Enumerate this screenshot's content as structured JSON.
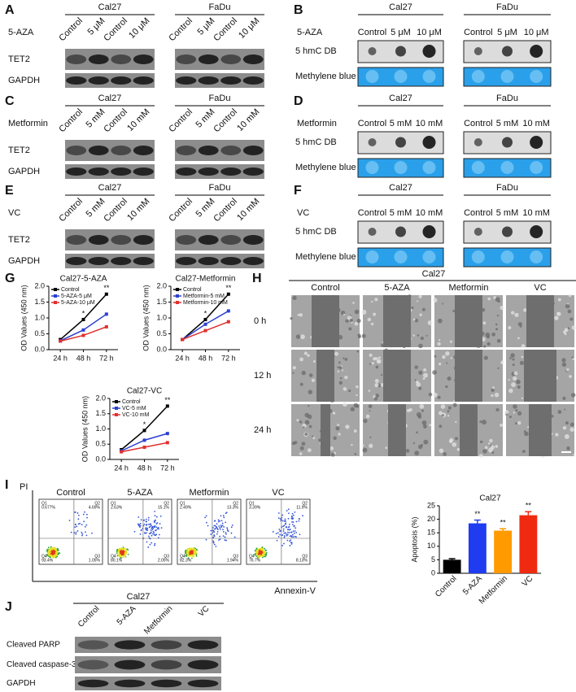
{
  "panels": [
    {
      "label": "A",
      "treatment": "5-AZA",
      "groups": [
        {
          "name": "Cal27",
          "lanes": [
            "Control",
            "5 μM",
            "Control",
            "10 μM"
          ]
        },
        {
          "name": "FaDu",
          "lanes": [
            "Control",
            "5 μM",
            "Control",
            "10 μM"
          ]
        }
      ],
      "rows": [
        "TET2",
        "GAPDH"
      ]
    },
    {
      "label": "B",
      "treatment": "5-AZA",
      "groups": [
        {
          "name": "Cal27",
          "lanes": [
            "Control",
            "5 μM",
            "10 μM"
          ]
        },
        {
          "name": "FaDu",
          "lanes": [
            "Control",
            "5 μM",
            "10 μM"
          ]
        }
      ],
      "rows": [
        "5 hmC DB",
        "Methylene blue"
      ]
    },
    {
      "label": "C",
      "treatment": "Metformin",
      "groups": [
        {
          "name": "Cal27",
          "lanes": [
            "Control",
            "5 mM",
            "Control",
            "10 mM"
          ]
        },
        {
          "name": "FaDu",
          "lanes": [
            "Control",
            "5 mM",
            "Control",
            "10 mM"
          ]
        }
      ],
      "rows": [
        "TET2",
        "GAPDH"
      ]
    },
    {
      "label": "D",
      "treatment": "Metformin",
      "groups": [
        {
          "name": "Cal27",
          "lanes": [
            "Control",
            "5 mM",
            "10 mM"
          ]
        },
        {
          "name": "FaDu",
          "lanes": [
            "Control",
            "5 mM",
            "10 mM"
          ]
        }
      ],
      "rows": [
        "5 hmC DB",
        "Methylene blue"
      ]
    },
    {
      "label": "E",
      "treatment": "VC",
      "groups": [
        {
          "name": "Cal27",
          "lanes": [
            "Control",
            "5 mM",
            "Control",
            "10 mM"
          ]
        },
        {
          "name": "FaDu",
          "lanes": [
            "Control",
            "5 mM",
            "Control",
            "10 mM"
          ]
        }
      ],
      "rows": [
        "TET2",
        "GAPDH"
      ]
    },
    {
      "label": "F",
      "treatment": "VC",
      "groups": [
        {
          "name": "Cal27",
          "lanes": [
            "Control",
            "5 mM",
            "10 mM"
          ]
        },
        {
          "name": "FaDu",
          "lanes": [
            "Control",
            "5 mM",
            "10 mM"
          ]
        }
      ],
      "rows": [
        "5 hmC DB",
        "Methylene blue"
      ]
    }
  ],
  "proliferation": {
    "label": "G"
  },
  "wound_healing": {
    "label": "H",
    "title": "Cal27",
    "columns": [
      "Control",
      "5-AZA",
      "Metformin",
      "VC"
    ],
    "rows": [
      "0 h",
      "12 h",
      "24 h"
    ]
  },
  "apoptosis": {
    "label": "I",
    "y_label": "PI",
    "x_label": "Annexin-V",
    "plots": [
      {
        "title": "Control",
        "quadrants": [
          {
            "name": "Q1",
            "value": "0.677%"
          },
          {
            "name": "Q2",
            "value": "4.69%"
          },
          {
            "name": "Q4",
            "value": "93.4%"
          },
          {
            "name": "Q3",
            "value": "1.05%"
          }
        ]
      },
      {
        "title": "5-AZA",
        "quadrants": [
          {
            "name": "Q1",
            "value": "2.63%"
          },
          {
            "name": "Q2",
            "value": "15.1%"
          },
          {
            "name": "Q4",
            "value": "80.1%"
          },
          {
            "name": "Q3",
            "value": "2.05%"
          }
        ]
      },
      {
        "title": "Metformin",
        "quadrants": [
          {
            "name": "Q1",
            "value": "2.49%"
          },
          {
            "name": "Q2",
            "value": "13.3%"
          },
          {
            "name": "Q4",
            "value": "82.3%"
          },
          {
            "name": "Q3",
            "value": "1.94%"
          }
        ]
      },
      {
        "title": "VC",
        "quadrants": [
          {
            "name": "Q1",
            "value": "3.39%"
          },
          {
            "name": "Q2",
            "value": "11.9%"
          },
          {
            "name": "Q4",
            "value": "76.7%"
          },
          {
            "name": "Q3",
            "value": "8.13%"
          }
        ]
      }
    ]
  },
  "western": {
    "label": "J",
    "title": "Cal27",
    "lanes": [
      "Control",
      "5-AZA",
      "Metformin",
      "VC"
    ],
    "rows": [
      "Cleaved PARP",
      "Cleaved caspase-3",
      "GAPDH"
    ]
  },
  "chart_data": [
    {
      "type": "line",
      "title": "Cal27-5-AZA",
      "y_label": "OD Values (450 nm)",
      "categories": [
        "24 h",
        "48 h",
        "72 h"
      ],
      "series": [
        {
          "name": "Control",
          "color": "#000000",
          "values": [
            0.32,
            0.95,
            1.75
          ]
        },
        {
          "name": "5-AZA-5 μM",
          "color": "#2c3fd0",
          "values": [
            0.28,
            0.62,
            1.12
          ]
        },
        {
          "name": "5-AZA-10 μM",
          "color": "#e03030",
          "values": [
            0.27,
            0.45,
            0.72
          ]
        }
      ],
      "annotations": [
        null,
        "*",
        "**"
      ],
      "ylim": [
        0,
        2
      ],
      "yticks": [
        {
          "value": 0,
          "label": "0.0"
        },
        0.5,
        {
          "value": 1,
          "label": "1.0"
        },
        1.5,
        {
          "value": 2,
          "label": "2.0"
        }
      ]
    },
    {
      "type": "line",
      "title": "Cal27-Metformin",
      "y_label": "OD Values (450 nm)",
      "categories": [
        "24 h",
        "48 h",
        "72 h"
      ],
      "series": [
        {
          "name": "Control",
          "color": "#000000",
          "values": [
            0.32,
            0.95,
            1.75
          ]
        },
        {
          "name": "Metformin-5 mM",
          "color": "#2c3fd0",
          "values": [
            0.32,
            0.8,
            1.22
          ]
        },
        {
          "name": "Metformin-10 mM",
          "color": "#e03030",
          "values": [
            0.32,
            0.6,
            0.88
          ]
        }
      ],
      "annotations": [
        null,
        "*",
        "**"
      ],
      "ylim": [
        0,
        2
      ],
      "yticks": [
        {
          "value": 0,
          "label": "0.0"
        },
        0.5,
        {
          "value": 1,
          "label": "1.0"
        },
        1.5,
        {
          "value": 2,
          "label": "2.0"
        }
      ]
    },
    {
      "type": "line",
      "title": "Cal27-VC",
      "y_label": "OD Values (450 nm)",
      "categories": [
        "24 h",
        "48 h",
        "72 h"
      ],
      "series": [
        {
          "name": "Control",
          "color": "#000000",
          "values": [
            0.32,
            0.95,
            1.75
          ]
        },
        {
          "name": "VC-5 mM",
          "color": "#2c3fd0",
          "values": [
            0.28,
            0.63,
            0.85
          ]
        },
        {
          "name": "VC-10 mM",
          "color": "#e03030",
          "values": [
            0.25,
            0.4,
            0.55
          ]
        }
      ],
      "annotations": [
        null,
        "*",
        "**"
      ],
      "ylim": [
        0,
        2
      ],
      "yticks": [
        {
          "value": 0,
          "label": "0.0"
        },
        0.5,
        {
          "value": 1,
          "label": "1.0"
        },
        1.5,
        {
          "value": 2,
          "label": "2.0"
        }
      ]
    },
    {
      "type": "bar",
      "title": "Cal27",
      "y_label": "Apoptosis (%)",
      "categories": [
        "Control",
        "5-AZA",
        "Metformin",
        "VC"
      ],
      "values": [
        5,
        18.5,
        15.8,
        21.5
      ],
      "errors": [
        0.4,
        1.2,
        0.7,
        1.3
      ],
      "colors": [
        "#000000",
        "#1f3cf0",
        "#ff9a00",
        "#f02a10"
      ],
      "annotations": [
        null,
        "**",
        "**",
        "**"
      ],
      "ylim": [
        0,
        25
      ],
      "yticks": [
        0,
        5,
        10,
        15,
        20,
        25
      ]
    }
  ]
}
